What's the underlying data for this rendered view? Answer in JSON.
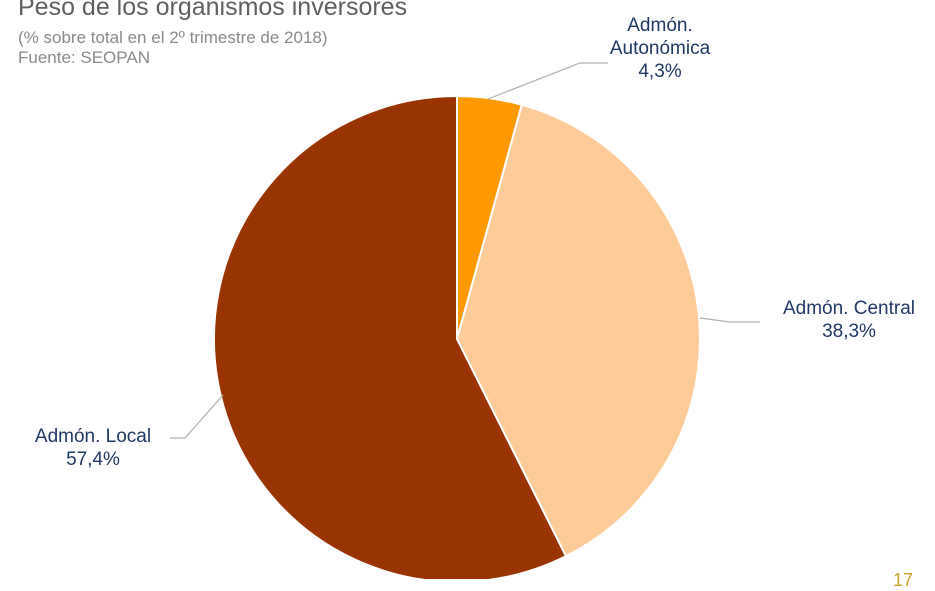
{
  "header": {
    "title": "Peso de los organismos inversores",
    "subtitle": "(% sobre total en el 2º trimestre de 2018)",
    "source": "Fuente: SEOPAN"
  },
  "page_number": "17",
  "colors": {
    "admon_autonomica": "#ff9900",
    "admon_central": "#ffcc99",
    "admon_local": "#993300",
    "label_text": "#1f3864",
    "leader_line": "#b0b0b0"
  },
  "chart_data": {
    "type": "pie",
    "title": "Peso de los organismos inversores",
    "subtitle": "(% sobre total en el 2º trimestre de 2018)",
    "slices": [
      {
        "name_lines": [
          "Admón.",
          "Autonómica"
        ],
        "value": 4.3,
        "value_label": "4,3%",
        "color": "#ff9900"
      },
      {
        "name_lines": [
          "Admón. Central"
        ],
        "value": 38.3,
        "value_label": "38,3%",
        "color": "#ffcc99"
      },
      {
        "name_lines": [
          "Admón. Local"
        ],
        "value": 57.4,
        "value_label": "57,4%",
        "color": "#993300"
      }
    ],
    "start_angle": "12 o'clock",
    "direction": "clockwise",
    "legend": "none"
  }
}
